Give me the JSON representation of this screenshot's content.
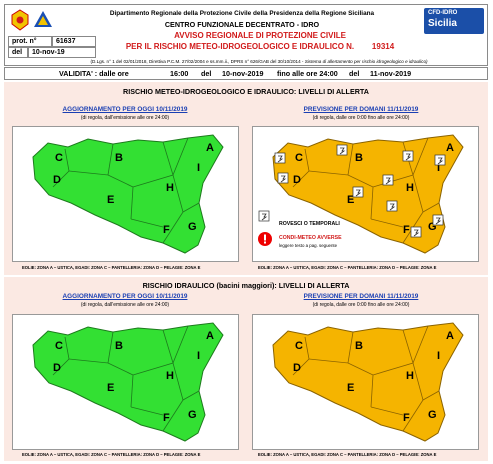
{
  "header": {
    "dept_title": "Dipartimento Regionale della Protezione Civile della Presidenza della Regione Siciliana",
    "centre_title": "CENTRO FUNZIONALE DECENTRATO - IDRO",
    "avviso_line1": "AVVISO REGIONALE DI PROTEZIONE CIVILE",
    "avviso_line2": "PER IL RISCHIO METEO-IDROGEOLOGICO E IDRAULICO N.",
    "avviso_number": "19314",
    "prot_label": "prot. n°",
    "prot_value": "61637",
    "del_label": "del",
    "del_value": "10-nov-19",
    "legal_ref_bold": "(D.Lgs. n° 1 del 02/01/2018, Direttiva P.C.M. 27/02/2004 e ss.mm.ii., DPRS n° 626/GAB del 30/10/2014 - ",
    "legal_ref_italic": "Sistema di allertamento per rischio idrogeologico e idraulico)",
    "logo_right_line1": "CFD-IDRO",
    "logo_right_line2": "Sicilia"
  },
  "validity": {
    "label": "VALIDITA' : dalle ore",
    "from_time": "16:00",
    "del1": "del",
    "from_date": "10-nov-2019",
    "fino": "fino alle ore 24:00",
    "del2": "del",
    "to_date": "11-nov-2019"
  },
  "section1": {
    "title": "RISCHIO METEO-IDROGEOLOGICO E IDRAULICO: LIVELLI DI ALLERTA",
    "left_title": "AGGIORNAMENTO PER OGGI 10/11/2019",
    "left_sub": "(di regola, dall'emissione alle ore 24:00)",
    "right_title": "PREVISIONE PER DOMANI 11/11/2019",
    "right_sub": "(di regola, dalle ore 0:00 fino alle ore 24:00)",
    "legend_storm": "ROVESCI O TEMPORALI",
    "legend_adverse_1": "CONDI-METEO AVVERSE",
    "legend_adverse_2": "leggere testo a pag. seguente",
    "footer_left": "EOLIE: ZONA A – USTICA, EGADI: ZONA C – PANTELLERIA: ZONA D – PELAGIE: ZONA E",
    "footer_right": "EOLIE: ZONA A – USTICA, EGADI: ZONA C – PANTELLERIA: ZONA D – PELAGIE: ZONA E"
  },
  "section2": {
    "title": "RISCHIO IDRAULICO (bacini maggiori): LIVELLI DI ALLERTA",
    "left_title": "AGGIORNAMENTO PER OGGI 10/11/2019",
    "left_sub": "(di regola, dall'emissione alle ore 24:00)",
    "right_title": "PREVISIONE PER DOMANI 11/11/2019",
    "right_sub": "(di regola, dalle ore 0:00 fino alle ore 24:00)",
    "footer_left": "EOLIE: ZONA A – USTICA, EGADI: ZONA C – PANTELLERIA: ZONA D – PELAGIE: ZONA E",
    "footer_right": "EOLIE: ZONA A – USTICA, EGADI: ZONA C – PANTELLERIA: ZONA D – PELAGIE: ZONA E"
  },
  "zones": {
    "a": "A",
    "b": "B",
    "c": "C",
    "d": "D",
    "e": "E",
    "f": "F",
    "g": "G",
    "h": "H",
    "i": "I"
  },
  "colors": {
    "green_alert": "#33e033",
    "orange_alert": "#f5b400",
    "title_red": "#d11a1a",
    "panel_title_blue": "#1a3fb3",
    "panel_bg": "#fbe9e3"
  }
}
